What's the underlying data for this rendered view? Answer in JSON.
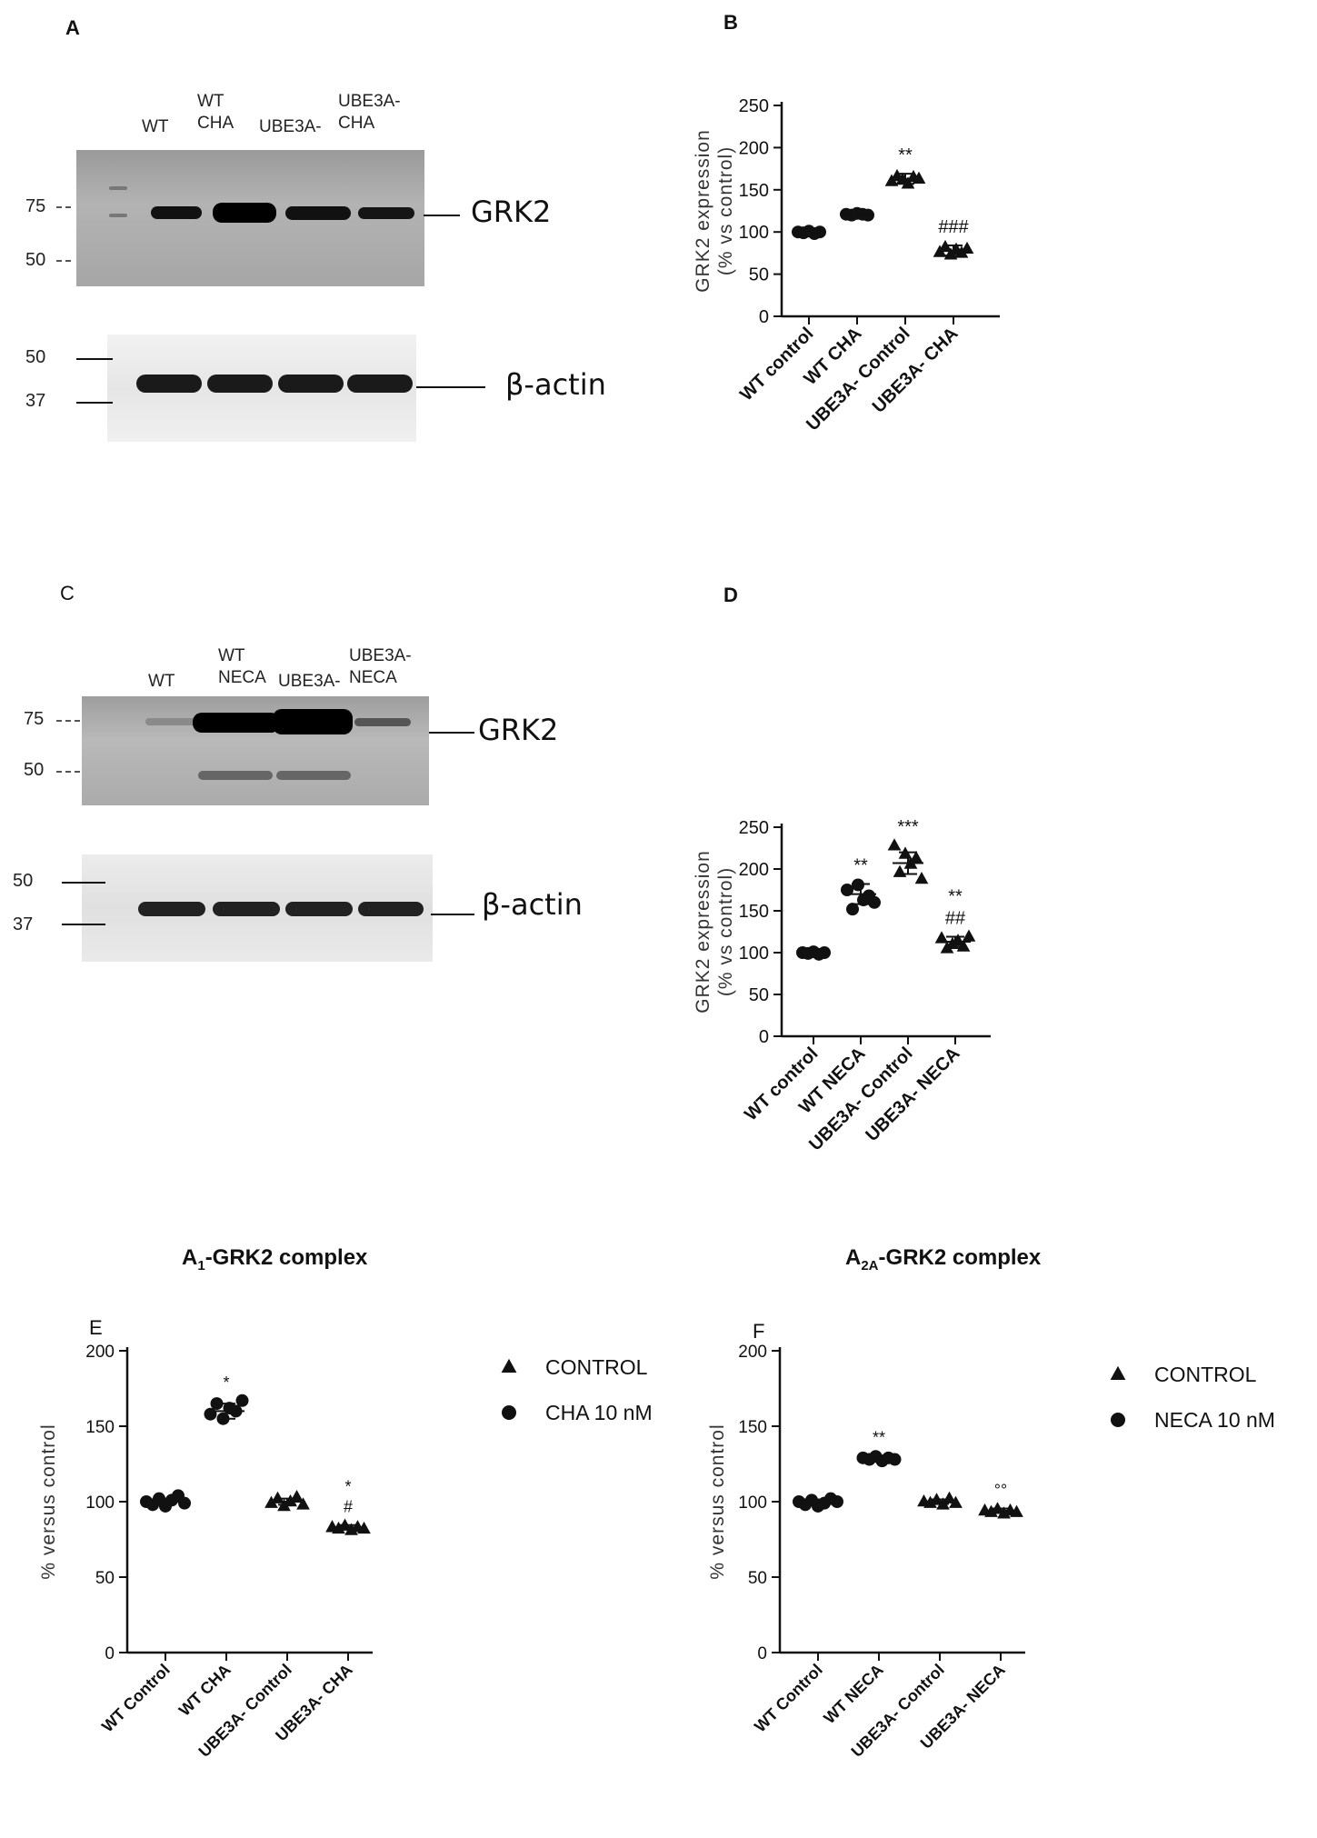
{
  "panels": {
    "A": {
      "letter": "A",
      "lane_labels": [
        [
          "WT"
        ],
        [
          "WT",
          "CHA"
        ],
        [
          "UBE3A-"
        ],
        [
          "UBE3A-",
          "CHA"
        ]
      ],
      "top_blot": {
        "protein": "GRK2",
        "markers": [
          "75",
          "50"
        ]
      },
      "bottom_blot": {
        "protein": "β-actin",
        "markers": [
          "50",
          "37"
        ]
      }
    },
    "C": {
      "letter": "C",
      "lane_labels": [
        [
          "WT"
        ],
        [
          "WT",
          "NECA"
        ],
        [
          "UBE3A-"
        ],
        [
          "UBE3A-",
          "NECA"
        ]
      ],
      "top_blot": {
        "protein": "GRK2",
        "markers": [
          "75",
          "50"
        ]
      },
      "bottom_blot": {
        "protein": "β-actin",
        "markers": [
          "50",
          "37"
        ]
      }
    }
  },
  "chart_data": [
    {
      "panel": "B",
      "type": "scatter",
      "title": "",
      "ylabel": "GRK2 expression\n(% vs control)",
      "xlabel": "",
      "ylim": [
        0,
        250
      ],
      "yticks": [
        0,
        50,
        100,
        150,
        200,
        250
      ],
      "categories": [
        "WT control",
        "WT CHA",
        "UBE3A- Control",
        "UBE3A- CHA"
      ],
      "markers": [
        "circle",
        "circle",
        "triangle",
        "triangle"
      ],
      "means": [
        100,
        121,
        163,
        78
      ],
      "sd": [
        2,
        2,
        6,
        6
      ],
      "points": [
        [
          100,
          99,
          101,
          98,
          100
        ],
        [
          121,
          120,
          122,
          121,
          120
        ],
        [
          160,
          166,
          162,
          157,
          165,
          163
        ],
        [
          76,
          82,
          73,
          79,
          75,
          80
        ]
      ],
      "annotations": [
        [
          "",
          ""
        ],
        [
          "",
          ""
        ],
        [
          "**",
          ""
        ],
        [
          "###",
          ""
        ]
      ]
    },
    {
      "panel": "D",
      "type": "scatter",
      "title": "",
      "ylabel": "GRK2 expression\n(% vs control)",
      "xlabel": "",
      "ylim": [
        0,
        250
      ],
      "yticks": [
        0,
        50,
        100,
        150,
        200,
        250
      ],
      "categories": [
        "WT control",
        "WT NECA",
        "UBE3A- Control",
        "UBE3A- NECA"
      ],
      "markers": [
        "circle",
        "circle",
        "triangle",
        "triangle"
      ],
      "means": [
        100,
        170,
        207,
        113
      ],
      "sd": [
        2,
        12,
        13,
        6
      ],
      "points": [
        [
          100,
          99,
          101,
          98,
          100
        ],
        [
          175,
          152,
          181,
          163,
          168,
          160
        ],
        [
          228,
          196,
          218,
          206,
          213,
          188
        ],
        [
          117,
          105,
          110,
          114,
          107,
          119
        ]
      ],
      "annotations": [
        [
          "",
          ""
        ],
        [
          "**",
          ""
        ],
        [
          "***",
          ""
        ],
        [
          "**",
          "##"
        ]
      ]
    },
    {
      "panel": "E",
      "type": "scatter",
      "title": "A1-GRK2 complex",
      "ylabel": "% versus control",
      "xlabel": "",
      "ylim": [
        0,
        200
      ],
      "yticks": [
        0,
        50,
        100,
        150,
        200
      ],
      "categories": [
        "WT Control",
        "WT CHA",
        "UBE3A- Control",
        "UBE3A- CHA"
      ],
      "markers": [
        "circle",
        "circle",
        "triangle",
        "triangle"
      ],
      "legend": [
        {
          "marker": "triangle",
          "label": "CONTROL"
        },
        {
          "marker": "circle",
          "label": "CHA 10 nM"
        }
      ],
      "means": [
        100,
        160,
        100,
        83
      ],
      "sd": [
        2,
        5,
        2,
        1.5
      ],
      "points": [
        [
          100,
          98,
          102,
          97,
          101,
          104,
          99
        ],
        [
          158,
          165,
          155,
          162,
          160,
          167
        ],
        [
          99,
          102,
          97,
          100,
          103,
          98
        ],
        [
          83,
          82,
          84,
          81,
          83,
          82
        ]
      ],
      "annotations": [
        [
          "",
          ""
        ],
        [
          "*",
          ""
        ],
        [
          "",
          ""
        ],
        [
          "*",
          "#"
        ]
      ]
    },
    {
      "panel": "F",
      "type": "scatter",
      "title": "A2A-GRK2 complex",
      "ylabel": "% versus control",
      "xlabel": "",
      "ylim": [
        0,
        200
      ],
      "yticks": [
        0,
        50,
        100,
        150,
        200
      ],
      "categories": [
        "WT Control",
        "WT NECA",
        "UBE3A- Control",
        "UBE3A- NECA"
      ],
      "markers": [
        "circle",
        "circle",
        "triangle",
        "triangle"
      ],
      "legend": [
        {
          "marker": "triangle",
          "label": "CONTROL"
        },
        {
          "marker": "circle",
          "label": "NECA 10 nM"
        }
      ],
      "means": [
        100,
        129,
        100,
        94
      ],
      "sd": [
        1.5,
        1.5,
        1.5,
        1.5
      ],
      "points": [
        [
          100,
          98,
          101,
          97,
          99,
          102,
          100
        ],
        [
          129,
          128,
          130,
          127,
          129,
          128
        ],
        [
          100,
          99,
          101,
          98,
          102,
          99
        ],
        [
          94,
          93,
          95,
          92,
          94,
          93
        ]
      ],
      "annotations": [
        [
          "",
          ""
        ],
        [
          "**",
          ""
        ],
        [
          "",
          ""
        ],
        [
          "°°",
          ""
        ]
      ]
    }
  ]
}
